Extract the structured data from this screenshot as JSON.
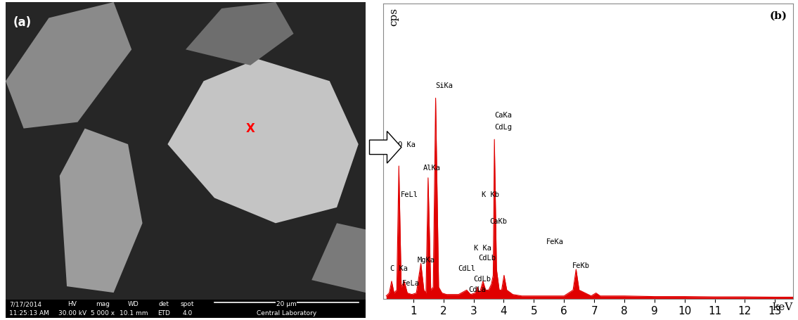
{
  "panel_a": {
    "label": "(a)",
    "marker": "X",
    "info": {
      "date": "7/17/2014",
      "time": "11:25:13 AM",
      "headers": [
        "HV",
        "mag",
        "WD",
        "det",
        "spot"
      ],
      "values": [
        "30.00 kV",
        "5 000 x",
        "10.1 mm",
        "ETD",
        "4.0"
      ],
      "scale_bar": "20 µm",
      "lab": "Central Laboratory"
    }
  },
  "chart_data": {
    "type": "line",
    "title": "(b)",
    "x_label": "keV",
    "y_label": "cps",
    "color": "#e00000",
    "x": [
      0.1,
      0.2,
      0.28,
      0.36,
      0.45,
      0.52,
      0.6,
      0.7,
      0.8,
      0.95,
      1.1,
      1.25,
      1.35,
      1.42,
      1.49,
      1.58,
      1.66,
      1.74,
      1.84,
      1.95,
      2.1,
      2.3,
      2.5,
      2.77,
      2.9,
      3.05,
      3.13,
      3.2,
      3.31,
      3.4,
      3.5,
      3.59,
      3.65,
      3.69,
      3.76,
      3.85,
      3.93,
      4.01,
      4.1,
      4.3,
      4.6,
      5.0,
      5.5,
      6.0,
      6.3,
      6.4,
      6.5,
      6.9,
      7.06,
      7.2,
      8.0,
      9.0,
      10.0,
      11.0,
      12.0,
      13.0,
      13.6
    ],
    "values": [
      1,
      2,
      6,
      2,
      3,
      45,
      4,
      6,
      2,
      1.5,
      2,
      12,
      3,
      2,
      41,
      3,
      4,
      68,
      4,
      2,
      1.5,
      1.5,
      1.5,
      3,
      1.5,
      2,
      4,
      2,
      6,
      3,
      3,
      5,
      8,
      54,
      10,
      3,
      3,
      8,
      3,
      1.5,
      1,
      1,
      1,
      1,
      3,
      10,
      3,
      1,
      2,
      1,
      1,
      0.8,
      0.8,
      0.7,
      0.7,
      0.6,
      0.6
    ],
    "xlim": [
      0,
      13.6
    ],
    "xticks": [
      1,
      2,
      3,
      4,
      5,
      6,
      7,
      8,
      9,
      10,
      11,
      12,
      13
    ],
    "ylim": [
      0,
      100
    ],
    "yticks": [],
    "tick_labels": "x",
    "annotations": [
      {
        "text": "SiKa",
        "x": 1.74,
        "y": 71
      },
      {
        "text": "CaKa",
        "x": 3.69,
        "y": 61
      },
      {
        "text": "CdLg",
        "x": 3.69,
        "y": 57
      },
      {
        "text": "O Ka",
        "x": 0.5,
        "y": 51
      },
      {
        "text": "AlKa",
        "x": 1.33,
        "y": 43
      },
      {
        "text": "K Kb",
        "x": 3.26,
        "y": 34
      },
      {
        "text": "FeLl",
        "x": 0.58,
        "y": 34
      },
      {
        "text": "CaKb",
        "x": 3.53,
        "y": 25
      },
      {
        "text": "K Ka",
        "x": 3.02,
        "y": 16
      },
      {
        "text": "CdLb",
        "x": 3.16,
        "y": 12.5
      },
      {
        "text": "CdLl",
        "x": 2.49,
        "y": 9
      },
      {
        "text": "MgKa",
        "x": 1.14,
        "y": 12
      },
      {
        "text": "CdLb",
        "x": 3.0,
        "y": 5.5
      },
      {
        "text": "CdLa",
        "x": 2.84,
        "y": 2
      },
      {
        "text": "C Ka",
        "x": 0.23,
        "y": 9
      },
      {
        "text": "FeLa",
        "x": 0.63,
        "y": 4
      },
      {
        "text": "FeKa",
        "x": 5.4,
        "y": 18
      },
      {
        "text": "FeKb",
        "x": 6.28,
        "y": 10
      }
    ]
  }
}
